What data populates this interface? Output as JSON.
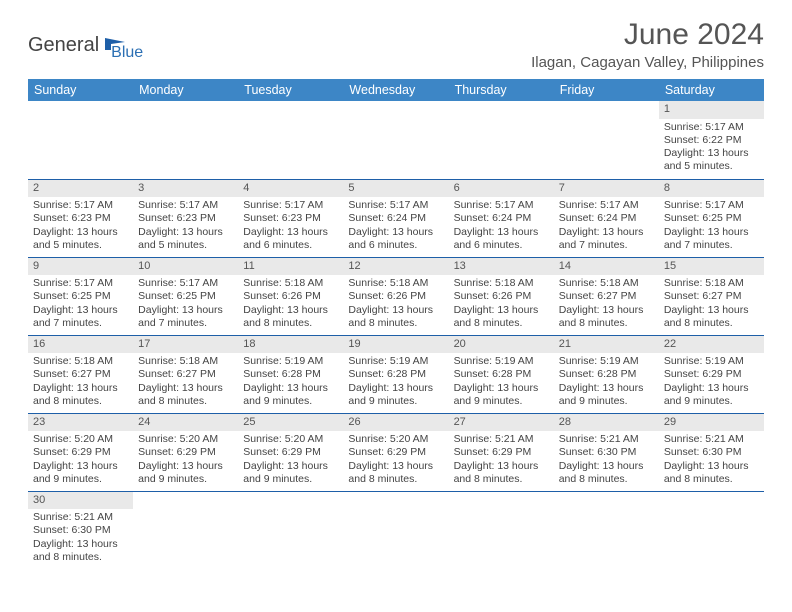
{
  "colors": {
    "header_bg": "#3d86c6",
    "header_fg": "#ffffff",
    "daynum_bg": "#e9e9e9",
    "row_border": "#1e5fa8",
    "title_color": "#555555",
    "text_color": "#444444",
    "logo_gray": "#444444",
    "logo_blue": "#2b6fb3",
    "logo_flag": "#1e5fa8"
  },
  "logo": {
    "part1": "General",
    "part2": "Blue"
  },
  "title": "June 2024",
  "subtitle": "Ilagan, Cagayan Valley, Philippines",
  "day_headers": [
    "Sunday",
    "Monday",
    "Tuesday",
    "Wednesday",
    "Thursday",
    "Friday",
    "Saturday"
  ],
  "weeks": [
    [
      null,
      null,
      null,
      null,
      null,
      null,
      {
        "n": "1",
        "sr": "Sunrise: 5:17 AM",
        "ss": "Sunset: 6:22 PM",
        "d1": "Daylight: 13 hours",
        "d2": "and 5 minutes."
      }
    ],
    [
      {
        "n": "2",
        "sr": "Sunrise: 5:17 AM",
        "ss": "Sunset: 6:23 PM",
        "d1": "Daylight: 13 hours",
        "d2": "and 5 minutes."
      },
      {
        "n": "3",
        "sr": "Sunrise: 5:17 AM",
        "ss": "Sunset: 6:23 PM",
        "d1": "Daylight: 13 hours",
        "d2": "and 5 minutes."
      },
      {
        "n": "4",
        "sr": "Sunrise: 5:17 AM",
        "ss": "Sunset: 6:23 PM",
        "d1": "Daylight: 13 hours",
        "d2": "and 6 minutes."
      },
      {
        "n": "5",
        "sr": "Sunrise: 5:17 AM",
        "ss": "Sunset: 6:24 PM",
        "d1": "Daylight: 13 hours",
        "d2": "and 6 minutes."
      },
      {
        "n": "6",
        "sr": "Sunrise: 5:17 AM",
        "ss": "Sunset: 6:24 PM",
        "d1": "Daylight: 13 hours",
        "d2": "and 6 minutes."
      },
      {
        "n": "7",
        "sr": "Sunrise: 5:17 AM",
        "ss": "Sunset: 6:24 PM",
        "d1": "Daylight: 13 hours",
        "d2": "and 7 minutes."
      },
      {
        "n": "8",
        "sr": "Sunrise: 5:17 AM",
        "ss": "Sunset: 6:25 PM",
        "d1": "Daylight: 13 hours",
        "d2": "and 7 minutes."
      }
    ],
    [
      {
        "n": "9",
        "sr": "Sunrise: 5:17 AM",
        "ss": "Sunset: 6:25 PM",
        "d1": "Daylight: 13 hours",
        "d2": "and 7 minutes."
      },
      {
        "n": "10",
        "sr": "Sunrise: 5:17 AM",
        "ss": "Sunset: 6:25 PM",
        "d1": "Daylight: 13 hours",
        "d2": "and 7 minutes."
      },
      {
        "n": "11",
        "sr": "Sunrise: 5:18 AM",
        "ss": "Sunset: 6:26 PM",
        "d1": "Daylight: 13 hours",
        "d2": "and 8 minutes."
      },
      {
        "n": "12",
        "sr": "Sunrise: 5:18 AM",
        "ss": "Sunset: 6:26 PM",
        "d1": "Daylight: 13 hours",
        "d2": "and 8 minutes."
      },
      {
        "n": "13",
        "sr": "Sunrise: 5:18 AM",
        "ss": "Sunset: 6:26 PM",
        "d1": "Daylight: 13 hours",
        "d2": "and 8 minutes."
      },
      {
        "n": "14",
        "sr": "Sunrise: 5:18 AM",
        "ss": "Sunset: 6:27 PM",
        "d1": "Daylight: 13 hours",
        "d2": "and 8 minutes."
      },
      {
        "n": "15",
        "sr": "Sunrise: 5:18 AM",
        "ss": "Sunset: 6:27 PM",
        "d1": "Daylight: 13 hours",
        "d2": "and 8 minutes."
      }
    ],
    [
      {
        "n": "16",
        "sr": "Sunrise: 5:18 AM",
        "ss": "Sunset: 6:27 PM",
        "d1": "Daylight: 13 hours",
        "d2": "and 8 minutes."
      },
      {
        "n": "17",
        "sr": "Sunrise: 5:18 AM",
        "ss": "Sunset: 6:27 PM",
        "d1": "Daylight: 13 hours",
        "d2": "and 8 minutes."
      },
      {
        "n": "18",
        "sr": "Sunrise: 5:19 AM",
        "ss": "Sunset: 6:28 PM",
        "d1": "Daylight: 13 hours",
        "d2": "and 9 minutes."
      },
      {
        "n": "19",
        "sr": "Sunrise: 5:19 AM",
        "ss": "Sunset: 6:28 PM",
        "d1": "Daylight: 13 hours",
        "d2": "and 9 minutes."
      },
      {
        "n": "20",
        "sr": "Sunrise: 5:19 AM",
        "ss": "Sunset: 6:28 PM",
        "d1": "Daylight: 13 hours",
        "d2": "and 9 minutes."
      },
      {
        "n": "21",
        "sr": "Sunrise: 5:19 AM",
        "ss": "Sunset: 6:28 PM",
        "d1": "Daylight: 13 hours",
        "d2": "and 9 minutes."
      },
      {
        "n": "22",
        "sr": "Sunrise: 5:19 AM",
        "ss": "Sunset: 6:29 PM",
        "d1": "Daylight: 13 hours",
        "d2": "and 9 minutes."
      }
    ],
    [
      {
        "n": "23",
        "sr": "Sunrise: 5:20 AM",
        "ss": "Sunset: 6:29 PM",
        "d1": "Daylight: 13 hours",
        "d2": "and 9 minutes."
      },
      {
        "n": "24",
        "sr": "Sunrise: 5:20 AM",
        "ss": "Sunset: 6:29 PM",
        "d1": "Daylight: 13 hours",
        "d2": "and 9 minutes."
      },
      {
        "n": "25",
        "sr": "Sunrise: 5:20 AM",
        "ss": "Sunset: 6:29 PM",
        "d1": "Daylight: 13 hours",
        "d2": "and 9 minutes."
      },
      {
        "n": "26",
        "sr": "Sunrise: 5:20 AM",
        "ss": "Sunset: 6:29 PM",
        "d1": "Daylight: 13 hours",
        "d2": "and 8 minutes."
      },
      {
        "n": "27",
        "sr": "Sunrise: 5:21 AM",
        "ss": "Sunset: 6:29 PM",
        "d1": "Daylight: 13 hours",
        "d2": "and 8 minutes."
      },
      {
        "n": "28",
        "sr": "Sunrise: 5:21 AM",
        "ss": "Sunset: 6:30 PM",
        "d1": "Daylight: 13 hours",
        "d2": "and 8 minutes."
      },
      {
        "n": "29",
        "sr": "Sunrise: 5:21 AM",
        "ss": "Sunset: 6:30 PM",
        "d1": "Daylight: 13 hours",
        "d2": "and 8 minutes."
      }
    ],
    [
      {
        "n": "30",
        "sr": "Sunrise: 5:21 AM",
        "ss": "Sunset: 6:30 PM",
        "d1": "Daylight: 13 hours",
        "d2": "and 8 minutes."
      },
      null,
      null,
      null,
      null,
      null,
      null
    ]
  ]
}
